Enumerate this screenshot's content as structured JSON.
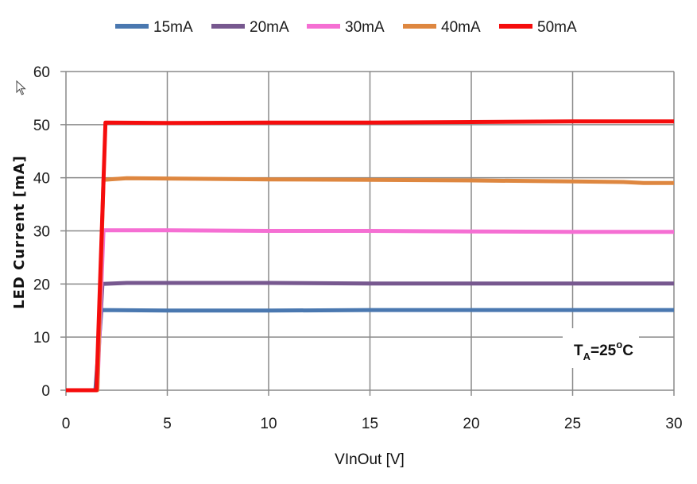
{
  "chart_data": {
    "type": "line",
    "title": "",
    "xlabel": "VInOut [V]",
    "ylabel": "LED Current [mA]",
    "xlim": [
      0,
      30
    ],
    "ylim": [
      0,
      60
    ],
    "xticks": [
      0,
      5,
      10,
      15,
      20,
      25,
      30
    ],
    "yticks": [
      0,
      10,
      20,
      30,
      40,
      50,
      60
    ],
    "grid": true,
    "legend_position": "top",
    "annotation": {
      "main": "T",
      "sub": "A",
      "rest": "=25",
      "sup": "o",
      "unit": "C"
    },
    "series": [
      {
        "name": "15mA",
        "color": "#4A78B0",
        "x": [
          0,
          1.45,
          1.75,
          5,
          10,
          15,
          20,
          25,
          30
        ],
        "y": [
          0,
          0,
          15.1,
          15.0,
          15.0,
          15.1,
          15.1,
          15.1,
          15.1
        ]
      },
      {
        "name": "20mA",
        "color": "#77588F",
        "x": [
          0,
          1.5,
          1.8,
          3,
          10,
          15,
          20,
          25,
          30
        ],
        "y": [
          0,
          0,
          20.0,
          20.2,
          20.2,
          20.1,
          20.1,
          20.1,
          20.1
        ]
      },
      {
        "name": "30mA",
        "color": "#F56FD3",
        "x": [
          0,
          1.55,
          1.85,
          5,
          10,
          15,
          20,
          25,
          30
        ],
        "y": [
          0,
          0,
          30.1,
          30.1,
          30.0,
          30.0,
          29.9,
          29.8,
          29.8
        ]
      },
      {
        "name": "40mA",
        "color": "#DE8740",
        "x": [
          0,
          1.55,
          1.85,
          3,
          10,
          15,
          20,
          25,
          27.5,
          28.5,
          30
        ],
        "y": [
          0,
          0,
          39.6,
          39.9,
          39.7,
          39.6,
          39.5,
          39.3,
          39.2,
          39.0,
          39.0
        ]
      },
      {
        "name": "50mA",
        "color": "#F50D0D",
        "x": [
          0,
          1.5,
          1.95,
          5,
          10,
          15,
          20,
          25,
          30
        ],
        "y": [
          0,
          0,
          50.4,
          50.3,
          50.4,
          50.4,
          50.5,
          50.6,
          50.6
        ]
      }
    ]
  }
}
